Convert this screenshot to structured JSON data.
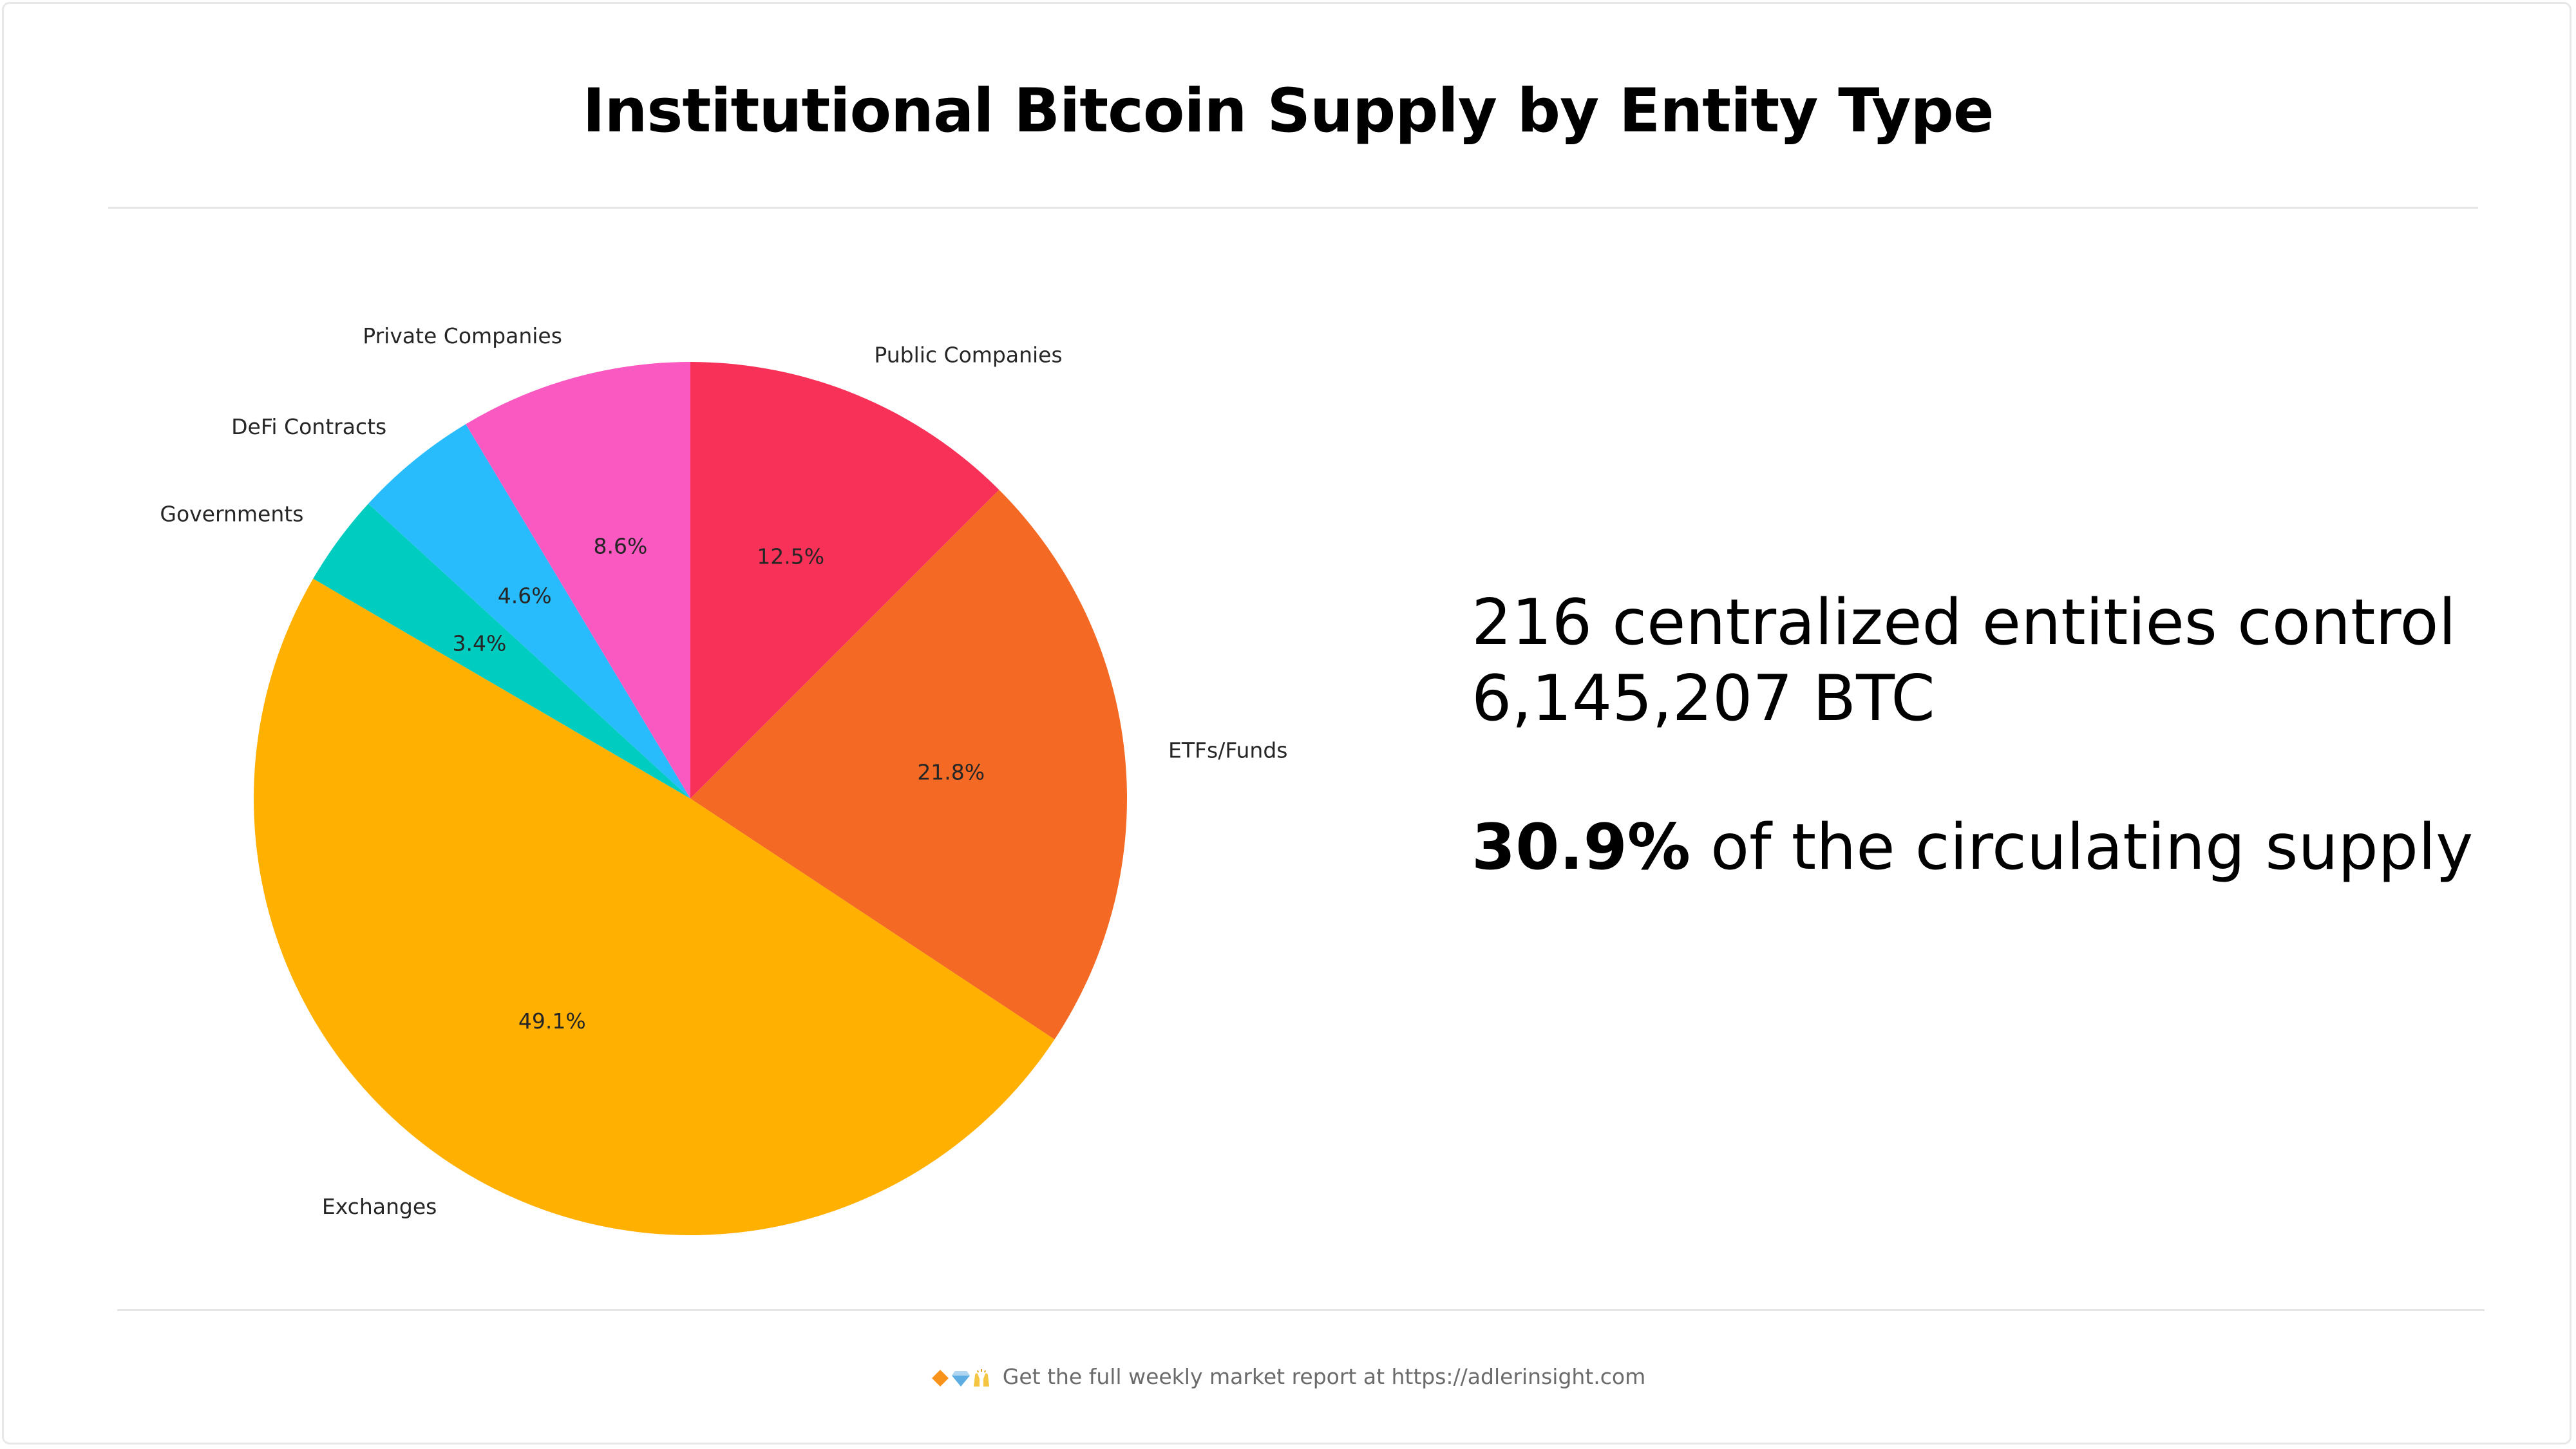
{
  "header": {
    "title": "Institutional Bitcoin Supply by Entity Type"
  },
  "stats": {
    "line1": "216 centralized entities control",
    "line2": "6,145,207 BTC",
    "highlight": "30.9%",
    "line3_rest": " of the circulating supply"
  },
  "footer": {
    "text": "Get the full weekly market report at https://adlerinsight.com",
    "icons": [
      "orange-diamond-icon",
      "blue-diamond-icon",
      "raised-hands-icon"
    ]
  },
  "chart_data": {
    "type": "pie",
    "title": "Institutional Bitcoin Supply by Entity Type",
    "start_angle_deg": 90,
    "direction": "clockwise",
    "slices": [
      {
        "label": "Public Companies",
        "value": 12.5,
        "pct_label": "12.5%",
        "color": "#F73157"
      },
      {
        "label": "ETFs/Funds",
        "value": 21.8,
        "pct_label": "21.8%",
        "color": "#F46A24"
      },
      {
        "label": "Exchanges",
        "value": 49.1,
        "pct_label": "49.1%",
        "color": "#FFB000"
      },
      {
        "label": "Governments",
        "value": 3.4,
        "pct_label": "3.4%",
        "color": "#00CCC0"
      },
      {
        "label": "DeFi Contracts",
        "value": 4.6,
        "pct_label": "4.6%",
        "color": "#29BCFC"
      },
      {
        "label": "Private Companies",
        "value": 8.6,
        "pct_label": "8.6%",
        "color": "#F959C1"
      }
    ]
  }
}
